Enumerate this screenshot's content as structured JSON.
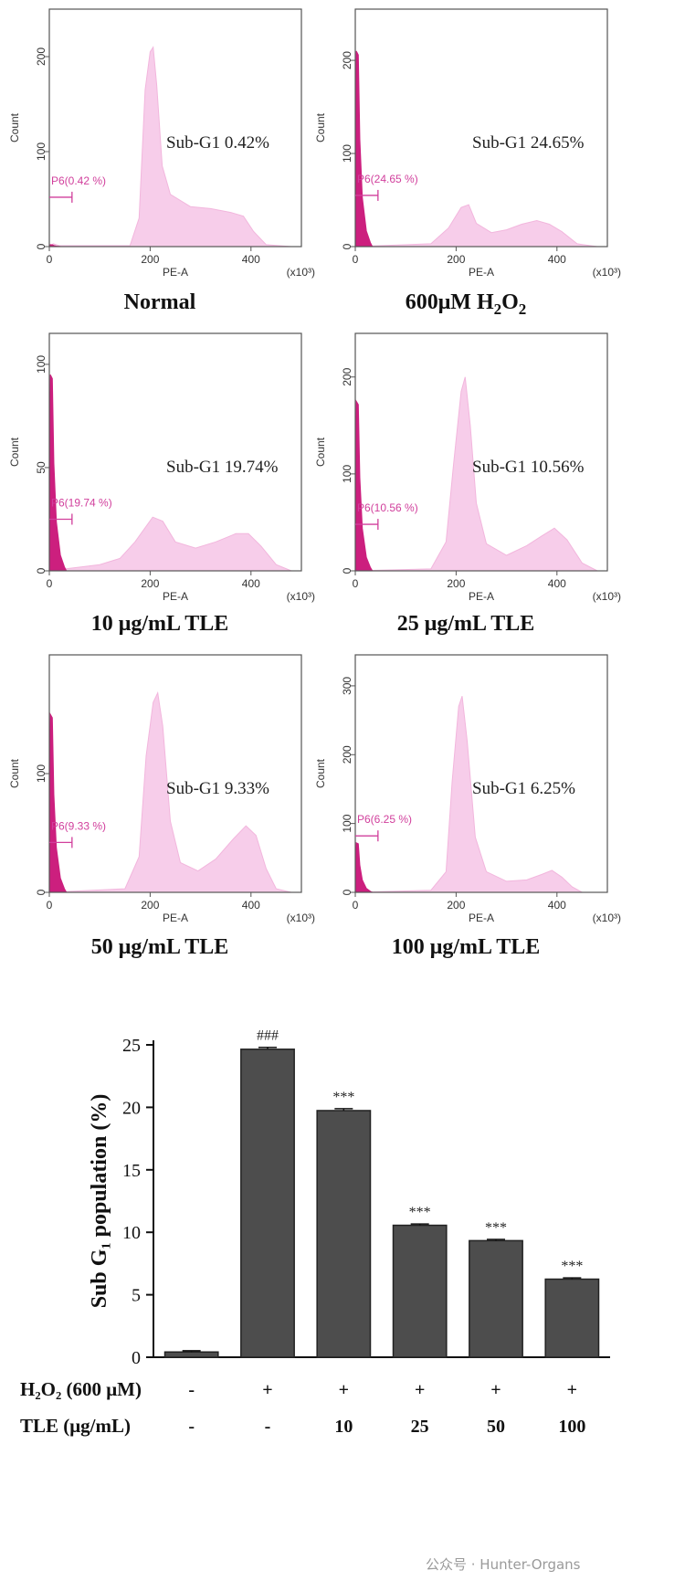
{
  "chart_data": [
    {
      "type": "area",
      "title": "Normal",
      "xlabel": "PE-A",
      "ylabel": "Count",
      "x_unit": "(x10³)",
      "x_ticks": [
        0,
        200,
        400
      ],
      "y_ticks": [
        0,
        100,
        200
      ],
      "xlim": [
        0,
        500
      ],
      "ylim": [
        0,
        250
      ],
      "gate": {
        "label": "P6(0.42 %)",
        "range": [
          0,
          45
        ],
        "count_level": 52
      },
      "annotation": "Sub-G1 0.42%",
      "subg1_peak": 2,
      "profile": [
        [
          0,
          0
        ],
        [
          8,
          3
        ],
        [
          20,
          1
        ],
        [
          160,
          1
        ],
        [
          178,
          30
        ],
        [
          190,
          165
        ],
        [
          200,
          205
        ],
        [
          206,
          210
        ],
        [
          213,
          170
        ],
        [
          224,
          85
        ],
        [
          240,
          55
        ],
        [
          280,
          42
        ],
        [
          320,
          40
        ],
        [
          360,
          36
        ],
        [
          385,
          32
        ],
        [
          405,
          16
        ],
        [
          430,
          2
        ],
        [
          480,
          0
        ]
      ]
    },
    {
      "type": "area",
      "title": "600μM H₂O₂",
      "xlabel": "PE-A",
      "ylabel": "Count",
      "x_unit": "(x10³)",
      "x_ticks": [
        0,
        200,
        400
      ],
      "y_ticks": [
        0,
        100,
        200
      ],
      "xlim": [
        0,
        500
      ],
      "ylim": [
        0,
        255
      ],
      "gate": {
        "label": "P6(24.65 %)",
        "range": [
          0,
          45
        ],
        "count_level": 55
      },
      "annotation": "Sub-G1 24.65%",
      "subg1_peak": 210,
      "profile": [
        [
          0,
          0
        ],
        [
          150,
          3
        ],
        [
          185,
          20
        ],
        [
          210,
          42
        ],
        [
          225,
          45
        ],
        [
          240,
          25
        ],
        [
          270,
          15
        ],
        [
          300,
          18
        ],
        [
          330,
          24
        ],
        [
          360,
          28
        ],
        [
          385,
          24
        ],
        [
          410,
          16
        ],
        [
          440,
          3
        ],
        [
          480,
          0
        ]
      ]
    },
    {
      "type": "area",
      "title": "10 μg/mL TLE",
      "xlabel": "PE-A",
      "ylabel": "Count",
      "x_unit": "(x10³)",
      "x_ticks": [
        0,
        200,
        400
      ],
      "y_ticks": [
        0,
        50,
        100
      ],
      "xlim": [
        0,
        500
      ],
      "ylim": [
        0,
        115
      ],
      "gate": {
        "label": "P6(19.74 %)",
        "range": [
          0,
          45
        ],
        "count_level": 25
      },
      "annotation": "Sub-G1 19.74%",
      "subg1_peak": 95,
      "profile": [
        [
          0,
          0
        ],
        [
          100,
          3
        ],
        [
          140,
          6
        ],
        [
          170,
          14
        ],
        [
          205,
          26
        ],
        [
          225,
          24
        ],
        [
          250,
          14
        ],
        [
          290,
          11
        ],
        [
          330,
          14
        ],
        [
          370,
          18
        ],
        [
          395,
          18
        ],
        [
          420,
          12
        ],
        [
          450,
          3
        ],
        [
          480,
          0
        ]
      ]
    },
    {
      "type": "area",
      "title": "25 μg/mL TLE",
      "xlabel": "PE-A",
      "ylabel": "Count",
      "x_unit": "(x10³)",
      "x_ticks": [
        0,
        200,
        400
      ],
      "y_ticks": [
        0,
        100,
        200
      ],
      "xlim": [
        0,
        500
      ],
      "ylim": [
        0,
        245
      ],
      "gate": {
        "label": "P6(10.56 %)",
        "range": [
          0,
          45
        ],
        "count_level": 48
      },
      "annotation": "Sub-G1 10.56%",
      "subg1_peak": 175,
      "profile": [
        [
          0,
          0
        ],
        [
          150,
          2
        ],
        [
          180,
          30
        ],
        [
          195,
          110
        ],
        [
          210,
          185
        ],
        [
          218,
          200
        ],
        [
          228,
          150
        ],
        [
          240,
          70
        ],
        [
          260,
          28
        ],
        [
          300,
          16
        ],
        [
          340,
          26
        ],
        [
          370,
          36
        ],
        [
          395,
          44
        ],
        [
          420,
          32
        ],
        [
          450,
          8
        ],
        [
          480,
          0
        ]
      ]
    },
    {
      "type": "area",
      "title": "50 μg/mL TLE",
      "xlabel": "PE-A",
      "ylabel": "Count",
      "x_unit": "(x10³)",
      "x_ticks": [
        0,
        200,
        400
      ],
      "y_ticks": [
        0,
        100
      ],
      "xlim": [
        0,
        500
      ],
      "ylim": [
        0,
        200
      ],
      "gate": {
        "label": "P6(9.33 %)",
        "range": [
          0,
          45
        ],
        "count_level": 42
      },
      "annotation": "Sub-G1 9.33%",
      "subg1_peak": 150,
      "profile": [
        [
          0,
          0
        ],
        [
          150,
          3
        ],
        [
          178,
          30
        ],
        [
          192,
          115
        ],
        [
          206,
          160
        ],
        [
          215,
          168
        ],
        [
          225,
          140
        ],
        [
          240,
          60
        ],
        [
          260,
          25
        ],
        [
          295,
          18
        ],
        [
          330,
          28
        ],
        [
          365,
          45
        ],
        [
          390,
          56
        ],
        [
          410,
          48
        ],
        [
          430,
          20
        ],
        [
          450,
          3
        ],
        [
          480,
          0
        ]
      ]
    },
    {
      "type": "area",
      "title": "100 μg/mL TLE",
      "xlabel": "PE-A",
      "ylabel": "Count",
      "x_unit": "(x10³)",
      "x_ticks": [
        0,
        200,
        400
      ],
      "y_ticks": [
        0,
        100,
        200,
        300
      ],
      "xlim": [
        0,
        500
      ],
      "ylim": [
        0,
        345
      ],
      "gate": {
        "label": "P6(6.25 %)",
        "range": [
          0,
          45
        ],
        "count_level": 82
      },
      "annotation": "Sub-G1 6.25%",
      "subg1_peak": 72,
      "profile": [
        [
          0,
          0
        ],
        [
          150,
          3
        ],
        [
          180,
          30
        ],
        [
          192,
          160
        ],
        [
          205,
          270
        ],
        [
          212,
          285
        ],
        [
          222,
          220
        ],
        [
          238,
          80
        ],
        [
          260,
          30
        ],
        [
          300,
          16
        ],
        [
          340,
          18
        ],
        [
          370,
          26
        ],
        [
          390,
          32
        ],
        [
          410,
          22
        ],
        [
          430,
          8
        ],
        [
          450,
          0
        ]
      ]
    },
    {
      "type": "bar",
      "ylabel": "Sub G₁ population (%)",
      "ylim": [
        0,
        25
      ],
      "y_ticks": [
        0,
        5,
        10,
        15,
        20,
        25
      ],
      "values": [
        0.42,
        24.65,
        19.74,
        10.56,
        9.33,
        6.25
      ],
      "errors": [
        0.1,
        0.15,
        0.15,
        0.1,
        0.1,
        0.1
      ],
      "significance": [
        "",
        "###",
        "***",
        "***",
        "***",
        "***"
      ],
      "row_labels": [
        "H₂O₂ (600 μM)",
        "TLE (μg/mL)"
      ],
      "h2o2_row": [
        "-",
        "+",
        "+",
        "+",
        "+",
        "+"
      ],
      "tle_row": [
        "-",
        "-",
        "10",
        "25",
        "50",
        "100"
      ],
      "bar_color": "#4d4d4d"
    }
  ],
  "watermark": "公众号 · Hunter-Organs",
  "colors": {
    "peak_fill": "#f7cdea",
    "peak_stroke": "#f2b6dd",
    "subg1_fill": "#cc1f7e",
    "gate": "#d13f9c"
  }
}
